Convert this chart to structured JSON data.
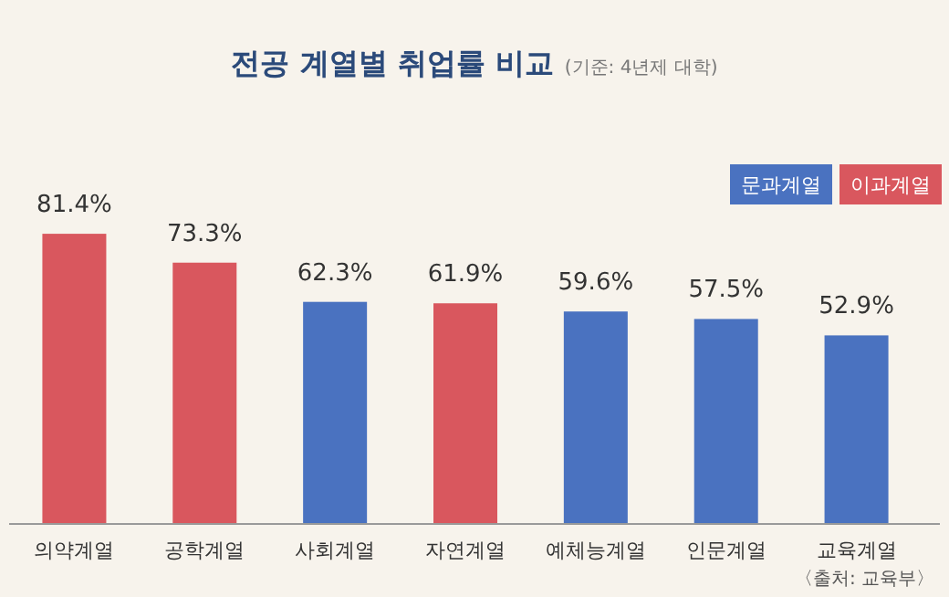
{
  "chart_data": {
    "type": "bar",
    "title": "전공 계열별 취업률 비교",
    "subtitle": "(기준: 4년제 대학)",
    "categories": [
      "의약계열",
      "공학계열",
      "사회계열",
      "자연계열",
      "예체능계열",
      "인문계열",
      "교육계열"
    ],
    "legend": "top right",
    "series": [
      {
        "name": "문과계열",
        "color": "#4a72c0",
        "values": [
          null,
          null,
          62.3,
          null,
          59.6,
          57.5,
          52.9
        ],
        "value_labels": [
          null,
          null,
          "62.3%",
          null,
          "59.6%",
          "57.5%",
          "52.9%"
        ]
      },
      {
        "name": "이과계열",
        "color": "#d9575e",
        "values": [
          81.4,
          73.3,
          null,
          61.9,
          null,
          null,
          null
        ],
        "value_labels": [
          "81.4%",
          "73.3%",
          null,
          "61.9%",
          null,
          null,
          null
        ]
      }
    ],
    "annotations": [
      "〈출처: 교육부〉"
    ]
  }
}
